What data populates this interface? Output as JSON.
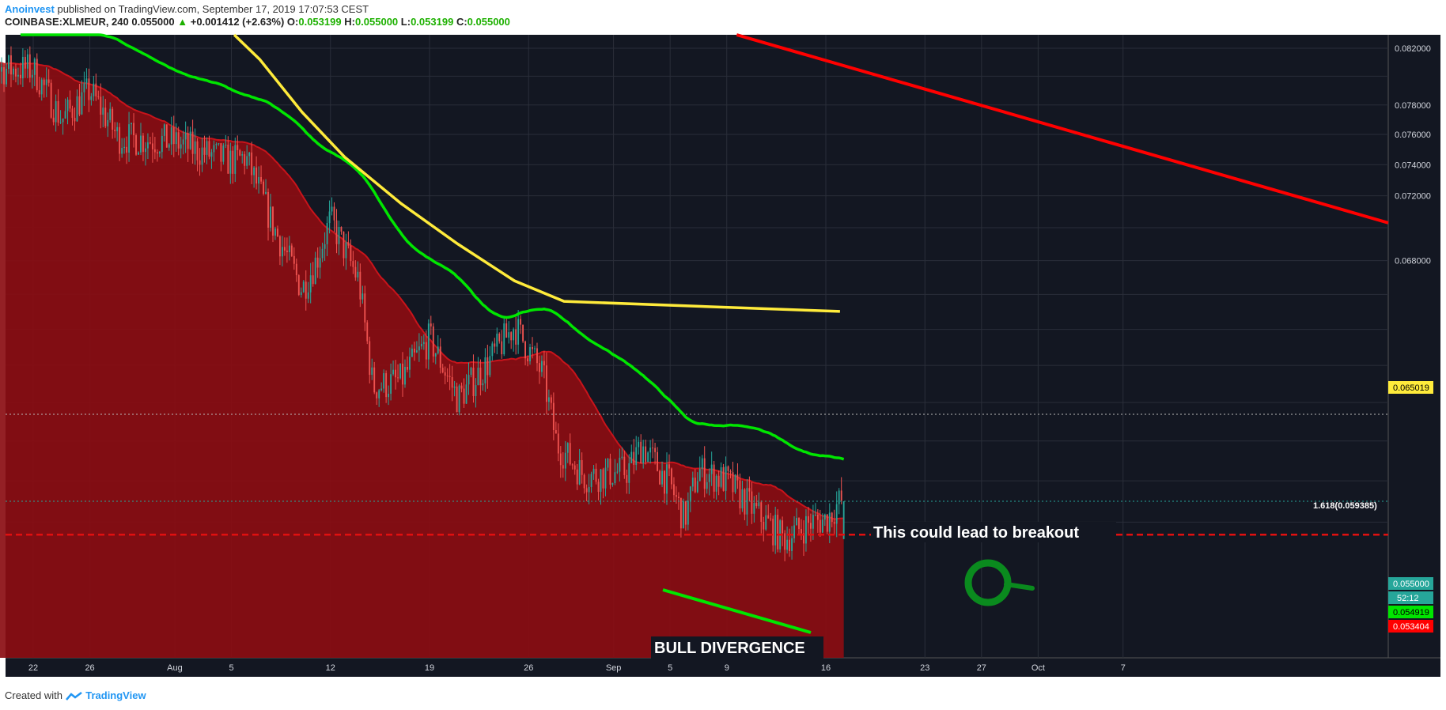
{
  "header": {
    "author": "Anoinvest",
    "published": "published on TradingView.com, September 17, 2019 17:07:53 CEST",
    "symbol": "COINBASE:XLMEUR, 240",
    "last": "0.055000",
    "change_arrow": "▲",
    "change": "+0.001412 (+2.63%)",
    "o_label": "O:",
    "o": "0.053199",
    "h_label": "H:",
    "h": "0.055000",
    "l_label": "L:",
    "l": "0.053199",
    "c_label": "C:",
    "c": "0.055000"
  },
  "footer": {
    "created_with": "Created with",
    "brand": "TradingView"
  },
  "annotations": {
    "breakout": "This could lead to breakout",
    "divergence": "BULL DIVERGENCE",
    "fib": "1.618(0.059385)"
  },
  "badges": {
    "ma_yellow": "0.065019",
    "price": "0.055000",
    "countdown": "52:12",
    "ma_green": "0.054919",
    "ma_red": "0.053404"
  },
  "colors": {
    "bg": "#131722",
    "grid": "#2a2e39",
    "up": "#26a69a",
    "down": "#ef5350",
    "ma_green": "#00e600",
    "ma_yellow": "#ffeb3b",
    "trend_red": "#ff0000",
    "fill_red": "#8b0d12",
    "brand": "#2196f3"
  },
  "chart_data": {
    "type": "candlestick",
    "title": "",
    "y_axis": {
      "scale": "log",
      "ticks": [
        "0.082000",
        "0.078000",
        "0.076000",
        "0.074000",
        "0.072000",
        "0.068000"
      ]
    },
    "x_axis": {
      "ticks": [
        "22",
        "26",
        "Aug",
        "5",
        "12",
        "19",
        "26",
        "Sep",
        "5",
        "9",
        "16",
        "23",
        "27",
        "Oct",
        "7"
      ]
    },
    "price_close_path": [
      [
        "Jul 22",
        0.0805
      ],
      [
        "Jul 24",
        0.077
      ],
      [
        "Jul 26",
        0.079
      ],
      [
        "Jul 28",
        0.0758
      ],
      [
        "Aug 1",
        0.0755
      ],
      [
        "Aug 3",
        0.0748
      ],
      [
        "Aug 5",
        0.0742
      ],
      [
        "Aug 6",
        0.0745
      ],
      [
        "Aug 8",
        0.07
      ],
      [
        "Aug 10",
        0.0663
      ],
      [
        "Aug 11",
        0.068
      ],
      [
        "Aug 12",
        0.0705
      ],
      [
        "Aug 14",
        0.0668
      ],
      [
        "Aug 15",
        0.0608
      ],
      [
        "Aug 17",
        0.0612
      ],
      [
        "Aug 19",
        0.0635
      ],
      [
        "Aug 21",
        0.0602
      ],
      [
        "Aug 23",
        0.062
      ],
      [
        "Aug 25",
        0.0642
      ],
      [
        "Aug 27",
        0.0615
      ],
      [
        "Aug 28",
        0.0578
      ],
      [
        "Aug 30",
        0.0562
      ],
      [
        "Sep 2",
        0.0565
      ],
      [
        "Sep 3",
        0.0578
      ],
      [
        "Sep 5",
        0.0558
      ],
      [
        "Sep 6",
        0.0541
      ],
      [
        "Sep 7",
        0.0565
      ],
      [
        "Sep 9",
        0.056
      ],
      [
        "Sep 11",
        0.0545
      ],
      [
        "Sep 13",
        0.0532
      ],
      [
        "Sep 15",
        0.054
      ],
      [
        "Sep 16",
        0.0541
      ],
      [
        "Sep 17",
        0.055
      ]
    ],
    "series": [
      {
        "color": "#00e600",
        "type": "moving-average"
      },
      {
        "color": "#ffeb3b",
        "type": "moving-average",
        "last": 0.065019
      },
      {
        "color": "#c8141b",
        "type": "moving-average-area",
        "last": 0.053404
      },
      {
        "color": "#ff0000",
        "type": "trendline"
      }
    ],
    "horizontal_levels": [
      {
        "value": 0.059385,
        "label": "1.618(0.059385)"
      },
      {
        "value": 0.055
      },
      {
        "value": 0.053404
      }
    ],
    "grid": true
  }
}
